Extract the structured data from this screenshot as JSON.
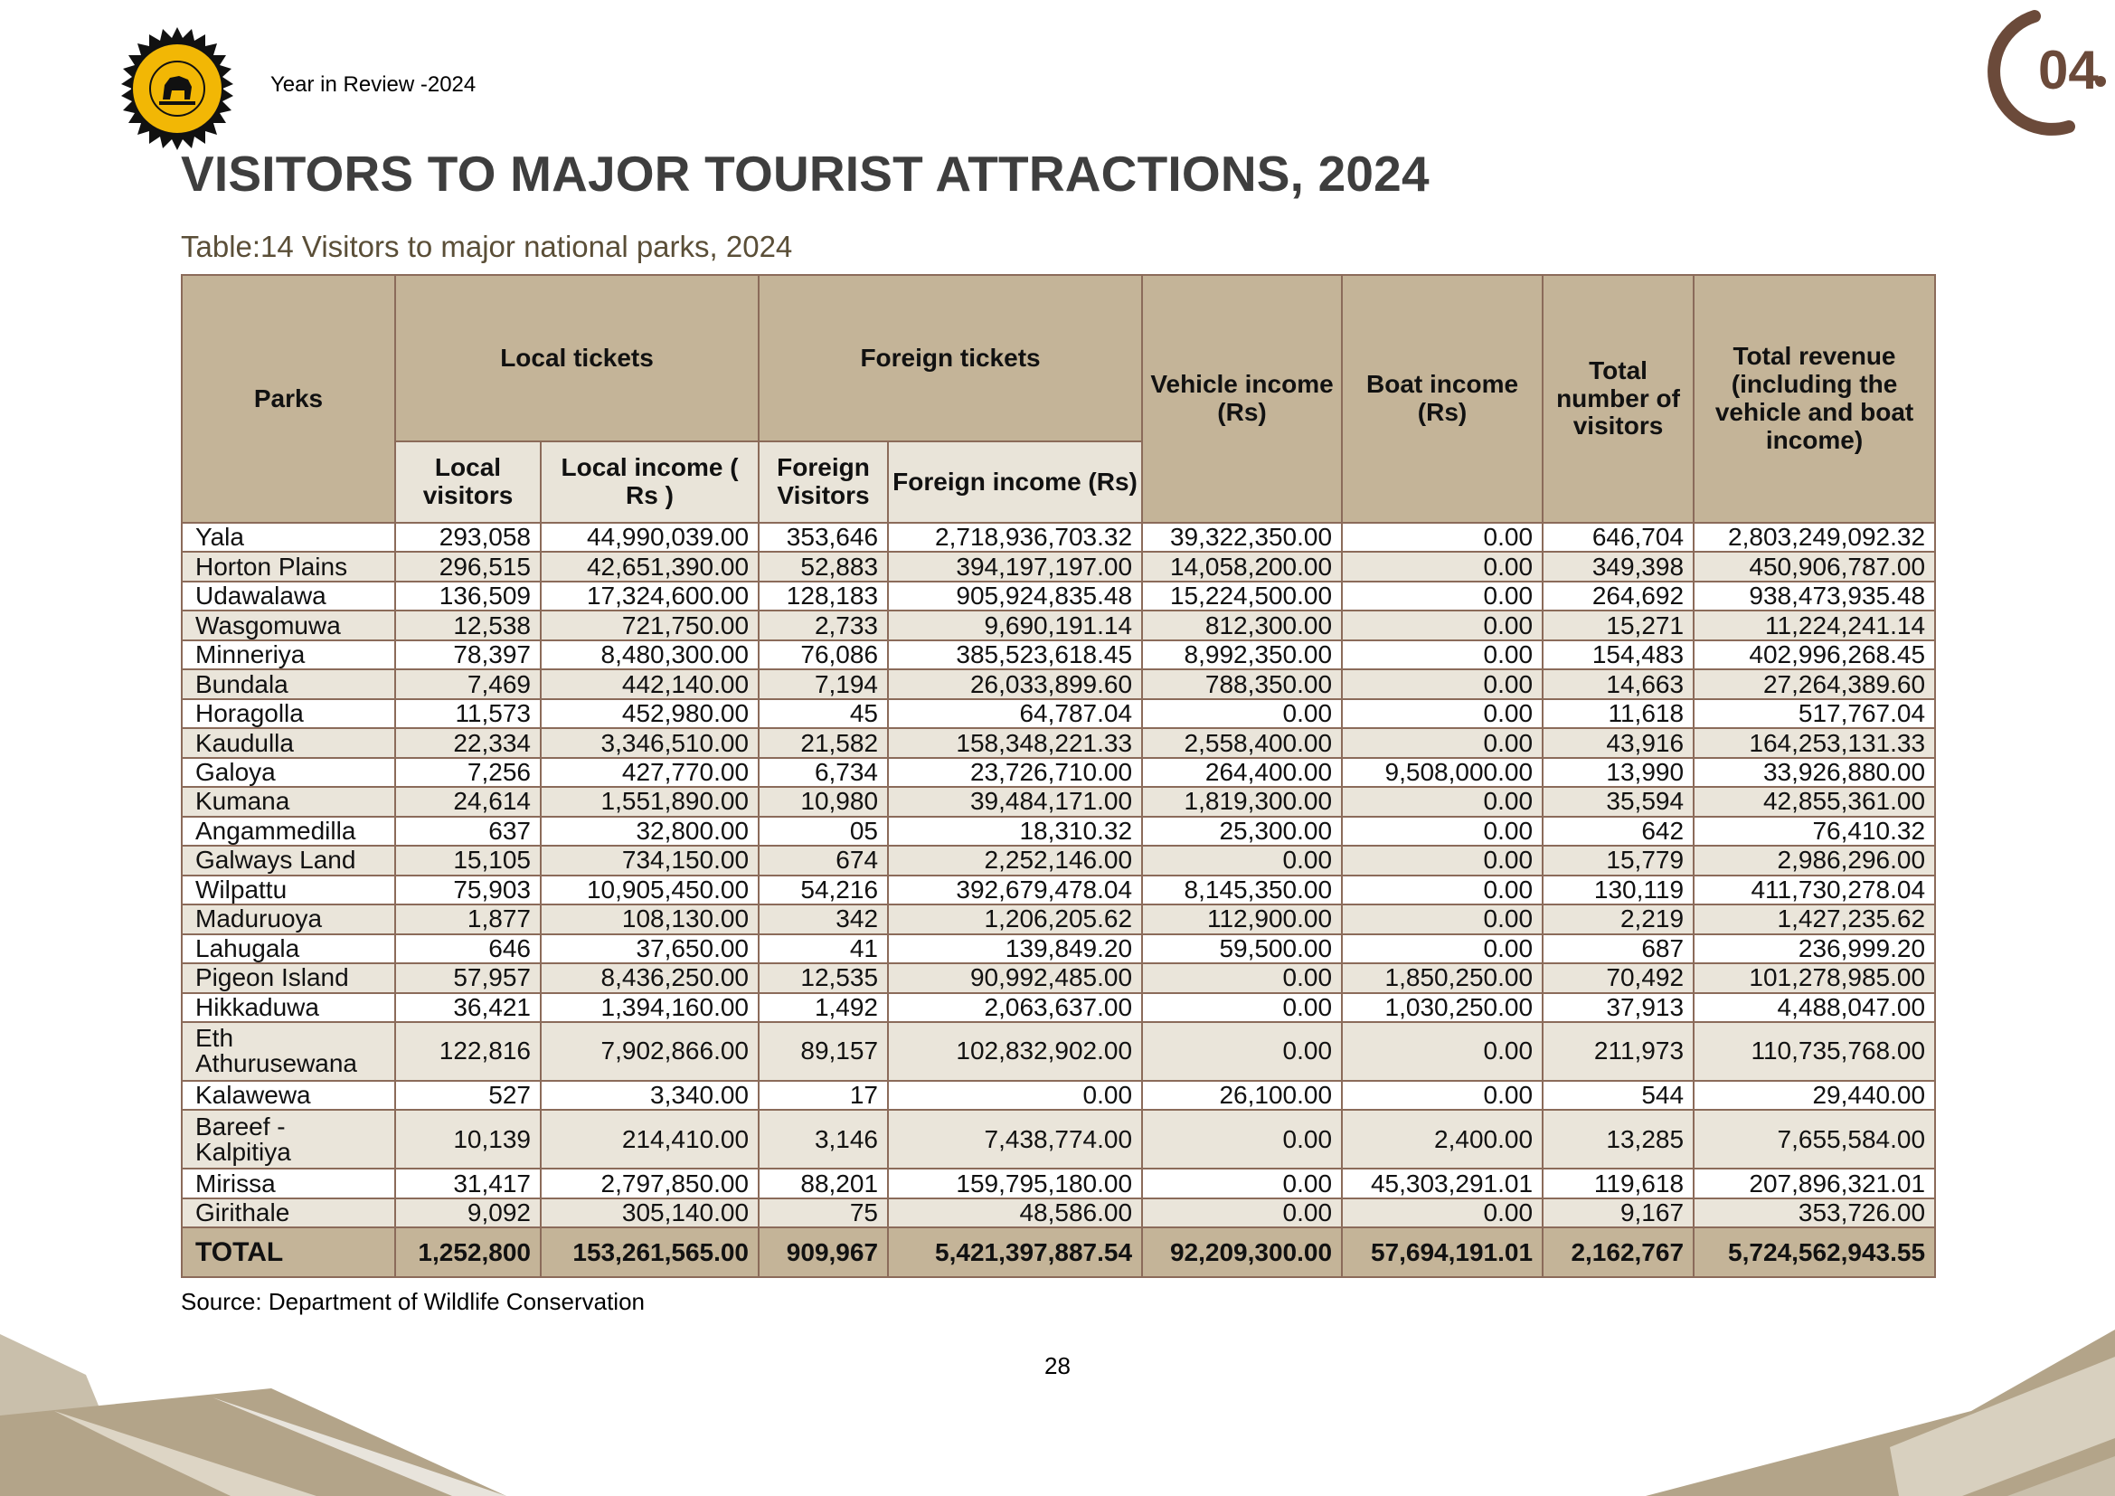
{
  "header": {
    "label": "Year in Review -2024",
    "chapter_number": "04"
  },
  "page_title": "VISITORS TO MAJOR TOURIST ATTRACTIONS, 2024",
  "table_caption": "Table:14 Visitors to major national parks, 2024",
  "table": {
    "headers": {
      "parks": "Parks",
      "local_tickets": "Local tickets",
      "foreign_tickets": "Foreign tickets",
      "vehicle_income": "Vehicle income (Rs)",
      "boat_income": "Boat income (Rs)",
      "total_visitors": "Total number of visitors",
      "total_revenue": "Total revenue (including the vehicle and boat income)",
      "local_visitors": "Local visitors",
      "local_income": "Local income ( Rs )",
      "foreign_visitors": "Foreign Visitors",
      "foreign_income": "Foreign income (Rs)"
    },
    "rows": [
      [
        "Yala",
        "293,058",
        "44,990,039.00",
        "353,646",
        "2,718,936,703.32",
        "39,322,350.00",
        "0.00",
        "646,704",
        "2,803,249,092.32"
      ],
      [
        "Horton Plains",
        "296,515",
        "42,651,390.00",
        "52,883",
        "394,197,197.00",
        "14,058,200.00",
        "0.00",
        "349,398",
        "450,906,787.00"
      ],
      [
        "Udawalawa",
        "136,509",
        "17,324,600.00",
        "128,183",
        "905,924,835.48",
        "15,224,500.00",
        "0.00",
        "264,692",
        "938,473,935.48"
      ],
      [
        "Wasgomuwa",
        "12,538",
        "721,750.00",
        "2,733",
        "9,690,191.14",
        "812,300.00",
        "0.00",
        "15,271",
        "11,224,241.14"
      ],
      [
        "Minneriya",
        "78,397",
        "8,480,300.00",
        "76,086",
        "385,523,618.45",
        "8,992,350.00",
        "0.00",
        "154,483",
        "402,996,268.45"
      ],
      [
        "Bundala",
        "7,469",
        "442,140.00",
        "7,194",
        "26,033,899.60",
        "788,350.00",
        "0.00",
        "14,663",
        "27,264,389.60"
      ],
      [
        "Horagolla",
        "11,573",
        "452,980.00",
        "45",
        "64,787.04",
        "0.00",
        "0.00",
        "11,618",
        "517,767.04"
      ],
      [
        "Kaudulla",
        "22,334",
        "3,346,510.00",
        "21,582",
        "158,348,221.33",
        "2,558,400.00",
        "0.00",
        "43,916",
        "164,253,131.33"
      ],
      [
        "Galoya",
        "7,256",
        "427,770.00",
        "6,734",
        "23,726,710.00",
        "264,400.00",
        "9,508,000.00",
        "13,990",
        "33,926,880.00"
      ],
      [
        "Kumana",
        "24,614",
        "1,551,890.00",
        "10,980",
        "39,484,171.00",
        "1,819,300.00",
        "0.00",
        "35,594",
        "42,855,361.00"
      ],
      [
        "Angammedilla",
        "637",
        "32,800.00",
        "05",
        "18,310.32",
        "25,300.00",
        "0.00",
        "642",
        "76,410.32"
      ],
      [
        "Galways Land",
        "15,105",
        "734,150.00",
        "674",
        "2,252,146.00",
        "0.00",
        "0.00",
        "15,779",
        "2,986,296.00"
      ],
      [
        "Wilpattu",
        "75,903",
        "10,905,450.00",
        "54,216",
        "392,679,478.04",
        "8,145,350.00",
        "0.00",
        "130,119",
        "411,730,278.04"
      ],
      [
        "Maduruoya",
        "1,877",
        "108,130.00",
        "342",
        "1,206,205.62",
        "112,900.00",
        "0.00",
        "2,219",
        "1,427,235.62"
      ],
      [
        "Lahugala",
        "646",
        "37,650.00",
        "41",
        "139,849.20",
        "59,500.00",
        "0.00",
        "687",
        "236,999.20"
      ],
      [
        "Pigeon Island",
        "57,957",
        "8,436,250.00",
        "12,535",
        "90,992,485.00",
        "0.00",
        "1,850,250.00",
        "70,492",
        "101,278,985.00"
      ],
      [
        "Hikkaduwa",
        "36,421",
        "1,394,160.00",
        "1,492",
        "2,063,637.00",
        "0.00",
        "1,030,250.00",
        "37,913",
        "4,488,047.00"
      ],
      [
        "Eth Athurusewana",
        "122,816",
        "7,902,866.00",
        "89,157",
        "102,832,902.00",
        "0.00",
        "0.00",
        "211,973",
        "110,735,768.00"
      ],
      [
        "Kalawewa",
        "527",
        "3,340.00",
        "17",
        "0.00",
        "26,100.00",
        "0.00",
        "544",
        "29,440.00"
      ],
      [
        "Bareef - Kalpitiya",
        "10,139",
        "214,410.00",
        "3,146",
        "7,438,774.00",
        "0.00",
        "2,400.00",
        "13,285",
        "7,655,584.00"
      ],
      [
        "Mirissa",
        "31,417",
        "2,797,850.00",
        "88,201",
        "159,795,180.00",
        "0.00",
        "45,303,291.01",
        "119,618",
        "207,896,321.01"
      ],
      [
        "Girithale",
        "9,092",
        "305,140.00",
        "75",
        "48,586.00",
        "0.00",
        "0.00",
        "9,167",
        "353,726.00"
      ]
    ],
    "total": [
      "TOTAL",
      "1,252,800",
      "153,261,565.00",
      "909,967",
      "5,421,397,887.54",
      "92,209,300.00",
      "57,694,191.01",
      "2,162,767",
      "5,724,562,943.55"
    ]
  },
  "source": "Source: Department of Wildlife Conservation",
  "page_number": "28",
  "colors": {
    "header_bg": "#c4b498",
    "subheader_bg": "#e9e4d9",
    "stripe": "#eae5da",
    "border": "#8b6b5a",
    "title": "#3e3e3e",
    "chapter": "#6b4a3a",
    "emblem": "#f2b705"
  }
}
